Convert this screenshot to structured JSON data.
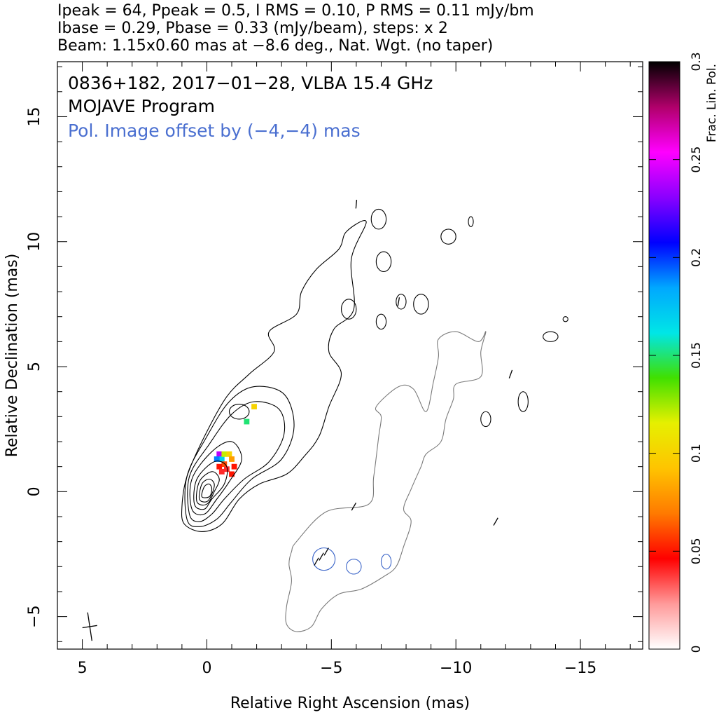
{
  "header": {
    "line1": "Ipeak = 64, Ppeak = 0.5, I RMS = 0.10, P RMS = 0.11 mJy/bm",
    "line2": "Ibase = 0.29, Pbase = 0.33 (mJy/beam), steps: x 2",
    "line3": "Beam: 1.15x0.60 mas at −8.6 deg., Nat. Wgt. (no taper)"
  },
  "annotations": {
    "source": "0836+182, 2017−01−28, VLBA 15.4 GHz",
    "program": "MOJAVE Program",
    "offset": "Pol. Image offset by (−4,−4) mas"
  },
  "colors": {
    "total_intensity_contour": "#000000",
    "pol_contour": "#7a7a7a",
    "pol_annotation": "#4a6fd0",
    "evpa_small_contour": "#3a64c8"
  },
  "chart_data": {
    "type": "contour",
    "xlabel": "Relative Right Ascension (mas)",
    "ylabel": "Relative Declination (mas)",
    "xlim": [
      6.0,
      -17.5
    ],
    "ylim": [
      -6.3,
      17.2
    ],
    "x_major_ticks": [
      5,
      0,
      -5,
      -10,
      -15
    ],
    "x_tick_labels": [
      "5",
      "0",
      "−5",
      "−10",
      "−15"
    ],
    "y_major_ticks": [
      -5,
      0,
      5,
      10,
      15
    ],
    "y_tick_labels": [
      "−5",
      "0",
      "5",
      "10",
      "15"
    ],
    "x_minor_step": 1,
    "y_minor_step": 1,
    "core": {
      "x": 0.0,
      "y": 0.0
    },
    "i_contour_levels_mJy": [
      0.29,
      0.58,
      1.16,
      2.32,
      4.64,
      9.28,
      18.56,
      37.12
    ],
    "intensity_contours": [
      {
        "level": 0.29,
        "points": [
          [
            0.9,
            -1.3
          ],
          [
            1.0,
            -0.6
          ],
          [
            0.8,
            0.6
          ],
          [
            0.1,
            2.2
          ],
          [
            -0.8,
            3.8
          ],
          [
            -1.7,
            4.7
          ],
          [
            -2.7,
            5.6
          ],
          [
            -2.5,
            6.4
          ],
          [
            -3.6,
            7.1
          ],
          [
            -3.8,
            8.0
          ],
          [
            -4.4,
            8.9
          ],
          [
            -5.3,
            9.7
          ],
          [
            -5.6,
            10.4
          ],
          [
            -6.4,
            10.8
          ],
          [
            -5.8,
            9.3
          ],
          [
            -5.9,
            7.3
          ],
          [
            -5.1,
            6.5
          ],
          [
            -4.9,
            5.6
          ],
          [
            -5.4,
            4.7
          ],
          [
            -4.9,
            3.4
          ],
          [
            -4.5,
            2.2
          ],
          [
            -3.9,
            1.4
          ],
          [
            -3.2,
            0.7
          ],
          [
            -2.1,
            0.3
          ],
          [
            -1.3,
            -0.3
          ],
          [
            -0.6,
            -1.3
          ],
          [
            0.2,
            -1.6
          ]
        ]
      },
      {
        "level": 0.58,
        "points": [
          [
            0.8,
            -1.1
          ],
          [
            0.8,
            0.6
          ],
          [
            0.0,
            2.2
          ],
          [
            -0.9,
            3.6
          ],
          [
            -1.9,
            4.2
          ],
          [
            -3.1,
            3.9
          ],
          [
            -3.5,
            2.6
          ],
          [
            -3.0,
            1.3
          ],
          [
            -1.8,
            0.5
          ],
          [
            -1.0,
            -0.4
          ],
          [
            -0.4,
            -1.1
          ],
          [
            0.3,
            -1.4
          ]
        ]
      },
      {
        "level": 1.16,
        "points": [
          [
            0.7,
            -0.9
          ],
          [
            0.7,
            0.6
          ],
          [
            -0.1,
            1.9
          ],
          [
            -1.0,
            3.1
          ],
          [
            -1.9,
            3.6
          ],
          [
            -2.9,
            3.3
          ],
          [
            -3.1,
            2.3
          ],
          [
            -2.5,
            1.2
          ],
          [
            -1.5,
            0.5
          ],
          [
            -0.7,
            -0.3
          ],
          [
            -0.2,
            -0.9
          ],
          [
            0.3,
            -1.2
          ]
        ]
      },
      {
        "level": 2.32,
        "points": [
          [
            0.6,
            -0.7
          ],
          [
            0.6,
            0.5
          ],
          [
            -0.2,
            1.6
          ],
          [
            -1.0,
            2.0
          ],
          [
            -1.4,
            1.3
          ],
          [
            -0.9,
            0.4
          ],
          [
            -0.4,
            -0.3
          ],
          [
            0.1,
            -0.9
          ]
        ]
      },
      {
        "level": 4.64,
        "points": [
          [
            0.5,
            -0.5
          ],
          [
            0.4,
            0.5
          ],
          [
            -0.3,
            1.2
          ],
          [
            -0.8,
            1.0
          ],
          [
            -0.7,
            0.3
          ],
          [
            -0.2,
            -0.3
          ],
          [
            0.1,
            -0.7
          ]
        ]
      },
      {
        "level": 9.28,
        "points": [
          [
            0.4,
            -0.4
          ],
          [
            0.3,
            0.4
          ],
          [
            -0.2,
            0.8
          ],
          [
            -0.5,
            0.5
          ],
          [
            -0.3,
            0.0
          ],
          [
            0.0,
            -0.5
          ]
        ]
      },
      {
        "level": 18.56,
        "points": [
          [
            0.3,
            -0.3
          ],
          [
            0.2,
            0.3
          ],
          [
            -0.1,
            0.5
          ],
          [
            -0.3,
            0.3
          ],
          [
            -0.2,
            -0.1
          ],
          [
            0.0,
            -0.4
          ]
        ]
      },
      {
        "level": 37.12,
        "points": [
          [
            0.2,
            -0.2
          ],
          [
            0.1,
            0.2
          ],
          [
            -0.1,
            0.3
          ],
          [
            -0.2,
            0.1
          ],
          [
            -0.1,
            -0.2
          ]
        ]
      }
    ],
    "intensity_islands": [
      {
        "cx": -1.3,
        "cy": 3.2,
        "rx": 0.4,
        "ry": 0.3
      },
      {
        "cx": -5.7,
        "cy": 7.3,
        "rx": 0.3,
        "ry": 0.4
      },
      {
        "cx": -7.0,
        "cy": 6.8,
        "rx": 0.2,
        "ry": 0.3
      },
      {
        "cx": -7.8,
        "cy": 7.6,
        "rx": 0.2,
        "ry": 0.3
      },
      {
        "cx": -8.6,
        "cy": 7.5,
        "rx": 0.3,
        "ry": 0.4
      },
      {
        "cx": -7.1,
        "cy": 9.2,
        "rx": 0.3,
        "ry": 0.4
      },
      {
        "cx": -6.9,
        "cy": 10.9,
        "rx": 0.3,
        "ry": 0.4
      },
      {
        "cx": -9.7,
        "cy": 10.2,
        "rx": 0.3,
        "ry": 0.3
      },
      {
        "cx": -10.6,
        "cy": 10.8,
        "rx": 0.1,
        "ry": 0.2
      },
      {
        "cx": -12.7,
        "cy": 3.6,
        "rx": 0.2,
        "ry": 0.4
      },
      {
        "cx": -11.2,
        "cy": 2.9,
        "rx": 0.2,
        "ry": 0.3
      },
      {
        "cx": -13.8,
        "cy": 6.2,
        "rx": 0.3,
        "ry": 0.2
      },
      {
        "cx": -14.4,
        "cy": 6.9,
        "rx": 0.1,
        "ry": 0.1
      }
    ],
    "pol_contour": {
      "points": [
        [
          -3.4,
          -2.4
        ],
        [
          -3.6,
          -2.0
        ],
        [
          -4.8,
          -0.8
        ],
        [
          -6.5,
          -0.5
        ],
        [
          -6.7,
          0.6
        ],
        [
          -6.9,
          2.2
        ],
        [
          -7.0,
          3.0
        ],
        [
          -6.8,
          3.4
        ],
        [
          -7.7,
          4.2
        ],
        [
          -8.3,
          4.1
        ],
        [
          -8.8,
          3.2
        ],
        [
          -9.1,
          4.4
        ],
        [
          -9.3,
          5.4
        ],
        [
          -9.3,
          6.1
        ],
        [
          -10.0,
          6.4
        ],
        [
          -10.9,
          6.0
        ],
        [
          -11.2,
          6.4
        ],
        [
          -11.0,
          5.6
        ],
        [
          -11.0,
          4.6
        ],
        [
          -10.0,
          4.3
        ],
        [
          -9.9,
          3.7
        ],
        [
          -9.6,
          2.9
        ],
        [
          -9.4,
          2.0
        ],
        [
          -8.8,
          1.5
        ],
        [
          -8.6,
          1.0
        ],
        [
          -8.2,
          0.1
        ],
        [
          -7.9,
          -0.7
        ],
        [
          -8.2,
          -1.2
        ],
        [
          -7.9,
          -2.2
        ],
        [
          -7.6,
          -3.0
        ],
        [
          -7.1,
          -3.4
        ],
        [
          -6.2,
          -3.9
        ],
        [
          -5.3,
          -4.1
        ],
        [
          -4.6,
          -4.7
        ],
        [
          -4.2,
          -5.4
        ],
        [
          -3.6,
          -5.6
        ],
        [
          -3.2,
          -5.3
        ],
        [
          -3.2,
          -4.6
        ],
        [
          -3.4,
          -3.6
        ],
        [
          -3.3,
          -2.9
        ]
      ]
    },
    "pol_islands": [
      {
        "cx": -4.7,
        "cy": -2.7,
        "rx": 0.45,
        "ry": 0.45
      },
      {
        "cx": -5.9,
        "cy": -3.0,
        "rx": 0.3,
        "ry": 0.3
      },
      {
        "cx": -7.2,
        "cy": -2.8,
        "rx": 0.2,
        "ry": 0.3
      }
    ],
    "evpa_ticks": [
      {
        "x": -4.6,
        "y": -2.6,
        "angle_deg": 30
      },
      {
        "x": -4.8,
        "y": -2.4,
        "angle_deg": 30
      },
      {
        "x": -4.4,
        "y": -2.8,
        "angle_deg": 30
      },
      {
        "x": -12.2,
        "y": 4.7,
        "angle_deg": 20
      },
      {
        "x": -7.7,
        "y": 7.6,
        "angle_deg": 10
      },
      {
        "x": -6.0,
        "y": 11.5,
        "angle_deg": 5
      },
      {
        "x": -11.6,
        "y": -1.2,
        "angle_deg": 30
      },
      {
        "x": -5.9,
        "y": -0.6,
        "angle_deg": 30
      }
    ],
    "frac_pol_pixels": [
      {
        "x": -0.5,
        "y": 1.5,
        "value": 0.24
      },
      {
        "x": -0.6,
        "y": 1.3,
        "value": 0.17
      },
      {
        "x": -0.7,
        "y": 1.5,
        "value": 0.12
      },
      {
        "x": -0.9,
        "y": 1.5,
        "value": 0.1
      },
      {
        "x": -1.0,
        "y": 1.3,
        "value": 0.08
      },
      {
        "x": -0.7,
        "y": 1.1,
        "value": 0.06
      },
      {
        "x": -0.5,
        "y": 1.0,
        "value": 0.05
      },
      {
        "x": -0.8,
        "y": 0.9,
        "value": 0.04
      },
      {
        "x": -1.1,
        "y": 1.0,
        "value": 0.05
      },
      {
        "x": -1.0,
        "y": 0.7,
        "value": 0.05
      },
      {
        "x": -0.6,
        "y": 0.8,
        "value": 0.04
      },
      {
        "x": -1.6,
        "y": 2.8,
        "value": 0.15
      },
      {
        "x": -1.9,
        "y": 3.4,
        "value": 0.1
      },
      {
        "x": -0.4,
        "y": 1.3,
        "value": 0.19
      }
    ],
    "beam": {
      "x": 4.7,
      "y": -5.4,
      "major_mas": 1.15,
      "minor_mas": 0.6,
      "pa_deg": -8.6
    }
  },
  "colorbar": {
    "label": "Frac. Lin. Pol.",
    "min": 0,
    "max": 0.3,
    "ticks": [
      0,
      0.05,
      0.1,
      0.15,
      0.2,
      0.25,
      0.3
    ],
    "tick_labels": [
      "0",
      "0.05",
      "0.1",
      "0.15",
      "0.2",
      "0.25",
      "0.3"
    ],
    "stops": [
      "#ffffff",
      "#ff9a9a",
      "#ff0000",
      "#ff7a00",
      "#ffc400",
      "#e6f000",
      "#40e000",
      "#00e6e6",
      "#00a8ff",
      "#0000ff",
      "#8a00ff",
      "#ff00ff",
      "#b0006a",
      "#000000"
    ]
  }
}
